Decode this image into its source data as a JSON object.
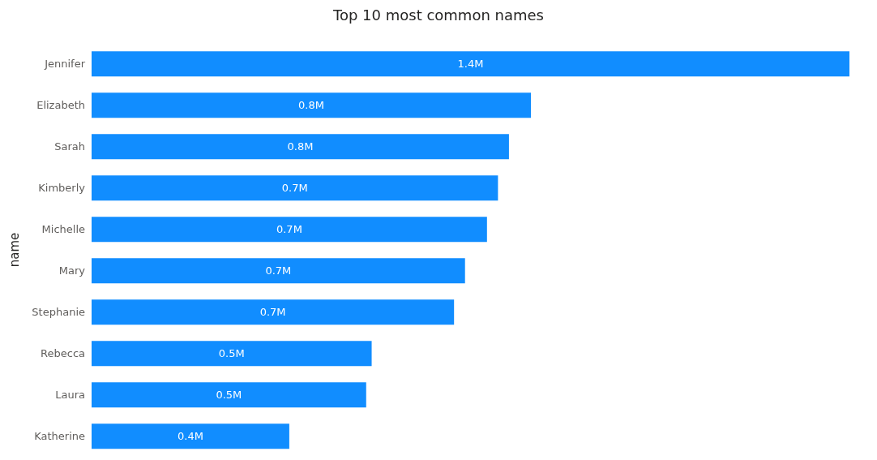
{
  "chart_data": {
    "type": "bar",
    "orientation": "horizontal",
    "title": "Top 10 most common names",
    "ylabel": "name",
    "categories": [
      "Jennifer",
      "Elizabeth",
      "Sarah",
      "Kimberly",
      "Michelle",
      "Mary",
      "Stephanie",
      "Rebecca",
      "Laura",
      "Katherine"
    ],
    "values": [
      1.38,
      0.8,
      0.76,
      0.74,
      0.72,
      0.68,
      0.66,
      0.51,
      0.5,
      0.36
    ],
    "value_labels": [
      "1.4M",
      "0.8M",
      "0.8M",
      "0.7M",
      "0.7M",
      "0.7M",
      "0.7M",
      "0.5M",
      "0.5M",
      "0.4M"
    ],
    "color": "#118dff",
    "grid": false,
    "legend": false
  }
}
